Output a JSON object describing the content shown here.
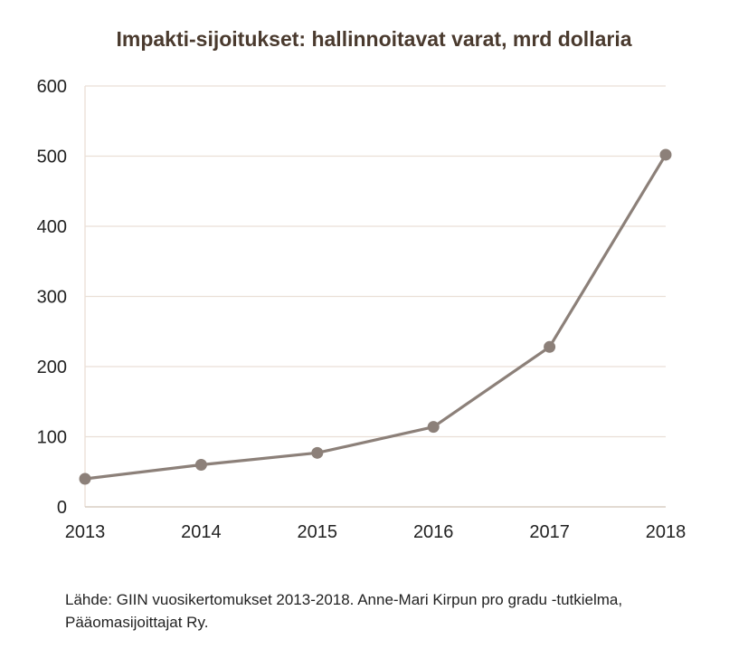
{
  "chart_data": {
    "type": "line",
    "title": "Impakti-sijoitukset: hallinnoitavat varat, mrd dollaria",
    "xlabel": "",
    "ylabel": "",
    "categories": [
      "2013",
      "2014",
      "2015",
      "2016",
      "2017",
      "2018"
    ],
    "series": [
      {
        "values": [
          40,
          60,
          77,
          114,
          228,
          502
        ]
      }
    ],
    "ylim": [
      0,
      600
    ],
    "yticks": [
      0,
      100,
      200,
      300,
      400,
      500,
      600
    ],
    "ytick_labels": [
      "0",
      "100",
      "200",
      "300",
      "400",
      "500",
      "600"
    ],
    "grid": true,
    "legend": "none",
    "colors": {
      "line": "#8c8079",
      "marker": "#8c8079",
      "grid": "#eadfd6",
      "axis": "#d8cdc4",
      "title": "#4a3a2e"
    }
  },
  "source": "Lähde: GIIN vuosikertomukset 2013-2018. Anne-Mari Kirpun pro gradu -tutkielma, Pääomasijoittajat Ry."
}
